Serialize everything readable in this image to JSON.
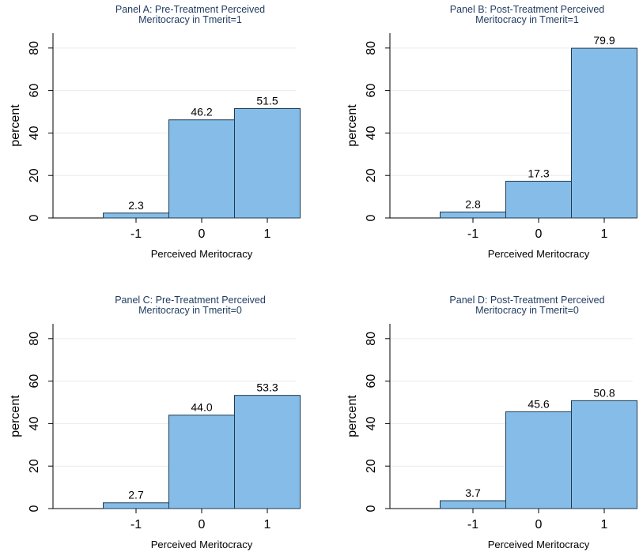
{
  "chart_data": [
    {
      "type": "bar",
      "title": "Panel A: Pre-Treatment Perceived\nMeritocracy in Tmerit=1",
      "xlabel": "Perceived Meritocracy",
      "ylabel": "percent",
      "categories": [
        "-1",
        "0",
        "1"
      ],
      "values": [
        2.3,
        46.2,
        51.5
      ],
      "value_labels": [
        "2.3",
        "46.2",
        "51.5"
      ],
      "yticks": [
        "0",
        "20",
        "40",
        "60",
        "80"
      ],
      "ylim": [
        0,
        87
      ],
      "grid": true
    },
    {
      "type": "bar",
      "title": "Panel B: Post-Treatment Perceived\nMeritocracy in Tmerit=1",
      "xlabel": "Perceived Meritocracy",
      "ylabel": "percent",
      "categories": [
        "-1",
        "0",
        "1"
      ],
      "values": [
        2.8,
        17.3,
        79.9
      ],
      "value_labels": [
        "2.8",
        "17.3",
        "79.9"
      ],
      "yticks": [
        "0",
        "20",
        "40",
        "60",
        "80"
      ],
      "ylim": [
        0,
        87
      ],
      "grid": true
    },
    {
      "type": "bar",
      "title": "Panel C: Pre-Treatment Perceived\nMeritocracy in Tmerit=0",
      "xlabel": "Perceived Meritocracy",
      "ylabel": "percent",
      "categories": [
        "-1",
        "0",
        "1"
      ],
      "values": [
        2.7,
        44.0,
        53.3
      ],
      "value_labels": [
        "2.7",
        "44.0",
        "53.3"
      ],
      "yticks": [
        "0",
        "20",
        "40",
        "60",
        "80"
      ],
      "ylim": [
        0,
        87
      ],
      "grid": true
    },
    {
      "type": "bar",
      "title": "Panel D: Post-Treatment Perceived\nMeritocracy in Tmerit=0",
      "xlabel": "Perceived Meritocracy",
      "ylabel": "percent",
      "categories": [
        "-1",
        "0",
        "1"
      ],
      "values": [
        3.7,
        45.6,
        50.8
      ],
      "value_labels": [
        "3.7",
        "45.6",
        "50.8"
      ],
      "yticks": [
        "0",
        "20",
        "40",
        "60",
        "80"
      ],
      "ylim": [
        0,
        87
      ],
      "grid": true
    }
  ],
  "colors": {
    "bar_fill": "#85BDE8",
    "bar_stroke": "#1f3a4f",
    "title_color": "#1f3a5f",
    "grid_color": "#e6ebef",
    "axis_color": "#000000"
  }
}
